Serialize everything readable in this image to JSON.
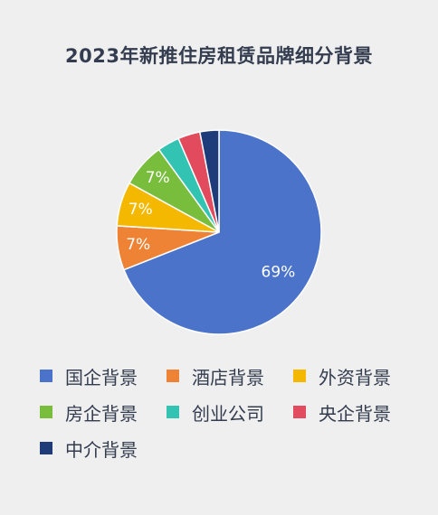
{
  "chart_data": {
    "type": "pie",
    "title": "2023年新推住房租赁品牌细分背景",
    "categories": [
      "国企背景",
      "酒店背景",
      "外资背景",
      "房企背景",
      "创业公司",
      "央企背景",
      "中介背景"
    ],
    "values": [
      69,
      7,
      7,
      7,
      3.5,
      3.5,
      3
    ],
    "data_labels": [
      "69%",
      "7%",
      "7%",
      "7%",
      "",
      "",
      ""
    ],
    "colors": [
      "#4a73c9",
      "#ee8235",
      "#f5b800",
      "#79bd3d",
      "#32c3b3",
      "#e24a5e",
      "#1f3c7a"
    ],
    "legend_position": "bottom"
  }
}
